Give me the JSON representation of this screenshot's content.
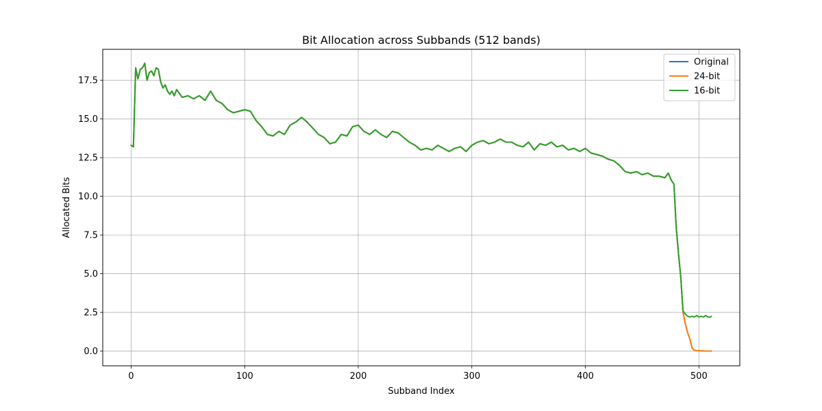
{
  "chart_data": {
    "type": "line",
    "title": "Bit Allocation across Subbands (512 bands)",
    "xlabel": "Subband Index",
    "ylabel": "Allocated Bits",
    "xlim": [
      -25,
      536
    ],
    "ylim": [
      -0.95,
      19.5
    ],
    "xticks": [
      0,
      100,
      200,
      300,
      400,
      500
    ],
    "yticks": [
      0.0,
      2.5,
      5.0,
      7.5,
      10.0,
      12.5,
      15.0,
      17.5
    ],
    "grid": true,
    "legend_position": "top-right",
    "colors": {
      "Original": "#1f77b4",
      "24-bit": "#ff7f0e",
      "16-bit": "#2ca02c"
    },
    "series": [
      {
        "name": "Original",
        "x": [
          0,
          2,
          4,
          6,
          8,
          10,
          12,
          14,
          16,
          18,
          20,
          22,
          24,
          26,
          28,
          30,
          32,
          34,
          36,
          38,
          40,
          45,
          50,
          55,
          60,
          65,
          70,
          75,
          80,
          85,
          90,
          95,
          100,
          105,
          110,
          115,
          120,
          125,
          130,
          135,
          140,
          145,
          150,
          155,
          160,
          165,
          170,
          175,
          180,
          185,
          190,
          195,
          200,
          205,
          210,
          215,
          220,
          225,
          230,
          235,
          240,
          245,
          250,
          255,
          260,
          265,
          270,
          275,
          280,
          285,
          290,
          295,
          300,
          305,
          310,
          315,
          320,
          325,
          330,
          335,
          340,
          345,
          350,
          355,
          360,
          365,
          370,
          375,
          380,
          385,
          390,
          395,
          400,
          405,
          410,
          415,
          420,
          425,
          430,
          435,
          440,
          445,
          450,
          455,
          460,
          465,
          470,
          473,
          476,
          478,
          480,
          482,
          484,
          486,
          488,
          490,
          492,
          494,
          496,
          498,
          500,
          502,
          504,
          506,
          508,
          510,
          511
        ],
        "y": [
          13.3,
          13.2,
          18.3,
          17.6,
          18.2,
          18.3,
          18.6,
          17.5,
          18.0,
          18.1,
          17.8,
          18.3,
          18.2,
          17.4,
          17.0,
          17.2,
          16.8,
          16.6,
          16.8,
          16.5,
          16.9,
          16.4,
          16.5,
          16.3,
          16.5,
          16.2,
          16.8,
          16.2,
          16.0,
          15.6,
          15.4,
          15.5,
          15.6,
          15.5,
          14.9,
          14.5,
          14.0,
          13.9,
          14.2,
          14.0,
          14.6,
          14.8,
          15.1,
          14.8,
          14.4,
          14.0,
          13.8,
          13.4,
          13.5,
          14.0,
          13.9,
          14.5,
          14.6,
          14.2,
          14.0,
          14.3,
          14.0,
          13.8,
          14.2,
          14.1,
          13.8,
          13.5,
          13.3,
          13.0,
          13.1,
          13.0,
          13.3,
          13.1,
          12.9,
          13.1,
          13.2,
          12.9,
          13.3,
          13.5,
          13.6,
          13.4,
          13.5,
          13.7,
          13.5,
          13.5,
          13.3,
          13.2,
          13.5,
          13.0,
          13.4,
          13.3,
          13.5,
          13.2,
          13.3,
          13.0,
          13.1,
          12.9,
          13.1,
          12.8,
          12.7,
          12.6,
          12.4,
          12.3,
          12.0,
          11.6,
          11.5,
          11.6,
          11.4,
          11.5,
          11.3,
          11.3,
          11.2,
          11.5,
          11.0,
          10.8,
          8.0,
          6.3,
          4.8,
          2.5,
          1.8,
          1.2,
          0.8,
          0.2,
          0.05,
          0.03,
          0.02,
          0.02,
          0.0,
          0.0,
          0.0,
          0.0,
          0.0
        ]
      },
      {
        "name": "24-bit",
        "x": [
          0,
          2,
          4,
          6,
          8,
          10,
          12,
          14,
          16,
          18,
          20,
          22,
          24,
          26,
          28,
          30,
          32,
          34,
          36,
          38,
          40,
          45,
          50,
          55,
          60,
          65,
          70,
          75,
          80,
          85,
          90,
          95,
          100,
          105,
          110,
          115,
          120,
          125,
          130,
          135,
          140,
          145,
          150,
          155,
          160,
          165,
          170,
          175,
          180,
          185,
          190,
          195,
          200,
          205,
          210,
          215,
          220,
          225,
          230,
          235,
          240,
          245,
          250,
          255,
          260,
          265,
          270,
          275,
          280,
          285,
          290,
          295,
          300,
          305,
          310,
          315,
          320,
          325,
          330,
          335,
          340,
          345,
          350,
          355,
          360,
          365,
          370,
          375,
          380,
          385,
          390,
          395,
          400,
          405,
          410,
          415,
          420,
          425,
          430,
          435,
          440,
          445,
          450,
          455,
          460,
          465,
          470,
          473,
          476,
          478,
          480,
          482,
          484,
          486,
          488,
          490,
          492,
          494,
          496,
          498,
          500,
          502,
          504,
          506,
          508,
          510,
          511
        ],
        "y": [
          13.3,
          13.2,
          18.3,
          17.6,
          18.2,
          18.3,
          18.6,
          17.5,
          18.0,
          18.1,
          17.8,
          18.3,
          18.2,
          17.4,
          17.0,
          17.2,
          16.8,
          16.6,
          16.8,
          16.5,
          16.9,
          16.4,
          16.5,
          16.3,
          16.5,
          16.2,
          16.8,
          16.2,
          16.0,
          15.6,
          15.4,
          15.5,
          15.6,
          15.5,
          14.9,
          14.5,
          14.0,
          13.9,
          14.2,
          14.0,
          14.6,
          14.8,
          15.1,
          14.8,
          14.4,
          14.0,
          13.8,
          13.4,
          13.5,
          14.0,
          13.9,
          14.5,
          14.6,
          14.2,
          14.0,
          14.3,
          14.0,
          13.8,
          14.2,
          14.1,
          13.8,
          13.5,
          13.3,
          13.0,
          13.1,
          13.0,
          13.3,
          13.1,
          12.9,
          13.1,
          13.2,
          12.9,
          13.3,
          13.5,
          13.6,
          13.4,
          13.5,
          13.7,
          13.5,
          13.5,
          13.3,
          13.2,
          13.5,
          13.0,
          13.4,
          13.3,
          13.5,
          13.2,
          13.3,
          13.0,
          13.1,
          12.9,
          13.1,
          12.8,
          12.7,
          12.6,
          12.4,
          12.3,
          12.0,
          11.6,
          11.5,
          11.6,
          11.4,
          11.5,
          11.3,
          11.3,
          11.2,
          11.5,
          11.0,
          10.8,
          8.0,
          6.3,
          4.8,
          2.5,
          1.8,
          1.2,
          0.8,
          0.2,
          0.05,
          0.03,
          0.02,
          0.02,
          0.0,
          0.0,
          0.0,
          0.0,
          0.0
        ]
      },
      {
        "name": "16-bit",
        "x": [
          0,
          2,
          4,
          6,
          8,
          10,
          12,
          14,
          16,
          18,
          20,
          22,
          24,
          26,
          28,
          30,
          32,
          34,
          36,
          38,
          40,
          45,
          50,
          55,
          60,
          65,
          70,
          75,
          80,
          85,
          90,
          95,
          100,
          105,
          110,
          115,
          120,
          125,
          130,
          135,
          140,
          145,
          150,
          155,
          160,
          165,
          170,
          175,
          180,
          185,
          190,
          195,
          200,
          205,
          210,
          215,
          220,
          225,
          230,
          235,
          240,
          245,
          250,
          255,
          260,
          265,
          270,
          275,
          280,
          285,
          290,
          295,
          300,
          305,
          310,
          315,
          320,
          325,
          330,
          335,
          340,
          345,
          350,
          355,
          360,
          365,
          370,
          375,
          380,
          385,
          390,
          395,
          400,
          405,
          410,
          415,
          420,
          425,
          430,
          435,
          440,
          445,
          450,
          455,
          460,
          465,
          470,
          473,
          476,
          478,
          480,
          482,
          484,
          486,
          488,
          490,
          492,
          494,
          496,
          498,
          500,
          502,
          504,
          506,
          508,
          510,
          511
        ],
        "y": [
          13.3,
          13.2,
          18.3,
          17.6,
          18.2,
          18.3,
          18.6,
          17.5,
          18.0,
          18.1,
          17.8,
          18.3,
          18.2,
          17.4,
          17.0,
          17.2,
          16.8,
          16.6,
          16.8,
          16.5,
          16.9,
          16.4,
          16.5,
          16.3,
          16.5,
          16.2,
          16.8,
          16.2,
          16.0,
          15.6,
          15.4,
          15.5,
          15.6,
          15.5,
          14.9,
          14.5,
          14.0,
          13.9,
          14.2,
          14.0,
          14.6,
          14.8,
          15.1,
          14.8,
          14.4,
          14.0,
          13.8,
          13.4,
          13.5,
          14.0,
          13.9,
          14.5,
          14.6,
          14.2,
          14.0,
          14.3,
          14.0,
          13.8,
          14.2,
          14.1,
          13.8,
          13.5,
          13.3,
          13.0,
          13.1,
          13.0,
          13.3,
          13.1,
          12.9,
          13.1,
          13.2,
          12.9,
          13.3,
          13.5,
          13.6,
          13.4,
          13.5,
          13.7,
          13.5,
          13.5,
          13.3,
          13.2,
          13.5,
          13.0,
          13.4,
          13.3,
          13.5,
          13.2,
          13.3,
          13.0,
          13.1,
          12.9,
          13.1,
          12.8,
          12.7,
          12.6,
          12.4,
          12.3,
          12.0,
          11.6,
          11.5,
          11.6,
          11.4,
          11.5,
          11.3,
          11.3,
          11.2,
          11.5,
          11.0,
          10.8,
          8.0,
          6.3,
          4.8,
          2.6,
          2.4,
          2.25,
          2.2,
          2.25,
          2.2,
          2.3,
          2.2,
          2.25,
          2.2,
          2.3,
          2.2,
          2.2,
          2.25
        ]
      }
    ]
  }
}
